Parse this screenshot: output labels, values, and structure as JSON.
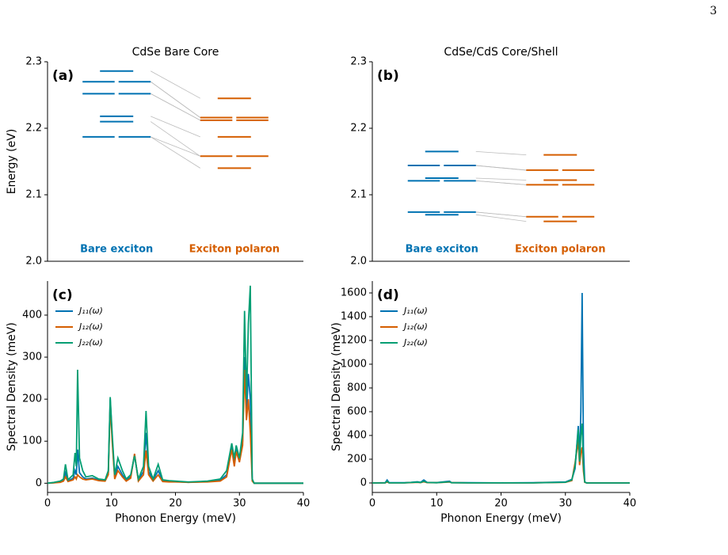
{
  "page_number": "3",
  "chart_data": [
    {
      "type": "levels",
      "title": "CdSe Bare Core",
      "panel_label": "(a)",
      "ylabel": "Energy (eV)",
      "ylim": [
        2.0,
        2.3
      ],
      "yticks": [
        {
          "value": 2.0,
          "label": "2.0"
        },
        2.1,
        2.2,
        2.3
      ],
      "series": [
        {
          "name": "Bare exciton",
          "color": "#0072b2",
          "values": [
            2.286,
            2.27,
            2.27,
            2.252,
            2.252,
            2.218,
            2.21,
            2.187,
            2.187
          ]
        },
        {
          "name": "Exciton polaron",
          "color": "#d55e00",
          "values": [
            2.245,
            2.216,
            2.216,
            2.212,
            2.212,
            2.187,
            2.158,
            2.158,
            2.14
          ]
        }
      ]
    },
    {
      "type": "levels",
      "title": "CdSe/CdS Core/Shell",
      "panel_label": "(b)",
      "ylim": [
        2.0,
        2.3
      ],
      "yticks": [
        {
          "value": 2.0,
          "label": "2.0"
        },
        2.1,
        2.2,
        2.3
      ],
      "series": [
        {
          "name": "Bare exciton",
          "color": "#0072b2",
          "values": [
            2.165,
            2.144,
            2.144,
            2.125,
            2.121,
            2.121,
            2.074,
            2.074,
            2.07
          ]
        },
        {
          "name": "Exciton polaron",
          "color": "#d55e00",
          "values": [
            2.16,
            2.137,
            2.137,
            2.122,
            2.115,
            2.115,
            2.067,
            2.067,
            2.06
          ]
        }
      ]
    },
    {
      "type": "line",
      "panel_label": "(c)",
      "xlabel": "Phonon Energy (meV)",
      "ylabel": "Spectral Density (meV)",
      "xlim": [
        0,
        40
      ],
      "xticks": [
        0,
        10,
        20,
        30,
        40
      ],
      "ylim": [
        -22,
        481
      ],
      "yticks": [
        0,
        100,
        200,
        300,
        400
      ],
      "legend": "upper left",
      "x": [
        0,
        1,
        2,
        2.5,
        2.8,
        3.2,
        4,
        4.3,
        4.5,
        4.7,
        5.0,
        5.5,
        6,
        7,
        8,
        9,
        9.5,
        9.8,
        10.1,
        10.5,
        11,
        11.7,
        12.3,
        13,
        13.6,
        14.2,
        15,
        15.4,
        15.8,
        16.5,
        17.3,
        18,
        19,
        20,
        22,
        25,
        27,
        28,
        28.8,
        29.2,
        29.5,
        30,
        30.5,
        30.8,
        31.1,
        31.4,
        31.7,
        32.0,
        32.3,
        33,
        35,
        40
      ],
      "series": [
        {
          "name": "J₁₁(ω)",
          "color": "#0072b2",
          "values": [
            0,
            1,
            3,
            7,
            25,
            5,
            12,
            30,
            20,
            80,
            25,
            15,
            10,
            12,
            8,
            6,
            25,
            200,
            110,
            15,
            40,
            20,
            7,
            15,
            68,
            7,
            28,
            120,
            28,
            7,
            30,
            6,
            4,
            4,
            2,
            4,
            7,
            20,
            85,
            50,
            80,
            55,
            100,
            300,
            170,
            260,
            200,
            8,
            0,
            0,
            0,
            0
          ]
        },
        {
          "name": "J₁₂(ω)",
          "color": "#d55e00",
          "values": [
            0,
            1,
            2,
            5,
            15,
            4,
            8,
            15,
            10,
            20,
            15,
            10,
            8,
            10,
            6,
            5,
            20,
            190,
            100,
            10,
            30,
            15,
            5,
            12,
            70,
            5,
            20,
            78,
            20,
            5,
            20,
            4,
            3,
            3,
            2,
            3,
            5,
            15,
            80,
            40,
            75,
            50,
            90,
            270,
            150,
            200,
            120,
            5,
            0,
            0,
            0,
            0
          ]
        },
        {
          "name": "J₂₂(ω)",
          "color": "#029e73",
          "values": [
            0,
            2,
            5,
            10,
            45,
            8,
            20,
            72,
            40,
            270,
            60,
            30,
            15,
            18,
            10,
            8,
            30,
            205,
            120,
            20,
            60,
            30,
            10,
            20,
            65,
            10,
            40,
            172,
            40,
            10,
            45,
            8,
            6,
            5,
            3,
            5,
            10,
            30,
            95,
            60,
            90,
            60,
            120,
            410,
            200,
            380,
            470,
            10,
            0,
            0,
            0,
            0
          ]
        }
      ]
    },
    {
      "type": "line",
      "panel_label": "(d)",
      "xlabel": "Phonon Energy (meV)",
      "ylabel": "Spectral Density (meV)",
      "xlim": [
        0,
        40
      ],
      "xticks": [
        0,
        10,
        20,
        30,
        40
      ],
      "ylim": [
        -80,
        1700
      ],
      "yticks": [
        0,
        200,
        400,
        600,
        800,
        1000,
        1200,
        1400,
        1600
      ],
      "legend": "upper left",
      "x": [
        0,
        2,
        2.3,
        2.6,
        5,
        6,
        7,
        7.5,
        8,
        8.5,
        10,
        12,
        12.3,
        15,
        20,
        25,
        30,
        31,
        31.5,
        32,
        32.2,
        32.4,
        32.6,
        32.8,
        33.0,
        33.3,
        34,
        40
      ],
      "series": [
        {
          "name": "J₁₁(ω)",
          "color": "#0072b2",
          "values": [
            0,
            2,
            25,
            2,
            2,
            5,
            10,
            5,
            25,
            5,
            3,
            15,
            3,
            2,
            1,
            2,
            8,
            30,
            120,
            480,
            200,
            600,
            1600,
            300,
            10,
            0,
            0,
            0
          ]
        },
        {
          "name": "J₁₂(ω)",
          "color": "#d55e00",
          "values": [
            0,
            1,
            8,
            1,
            1,
            3,
            5,
            3,
            10,
            3,
            2,
            8,
            2,
            1,
            1,
            1,
            5,
            20,
            170,
            350,
            150,
            250,
            300,
            100,
            5,
            0,
            0,
            0
          ]
        },
        {
          "name": "J₂₂(ω)",
          "color": "#029e73",
          "values": [
            0,
            1,
            15,
            1,
            1,
            4,
            7,
            4,
            15,
            4,
            2,
            10,
            2,
            1,
            1,
            1,
            6,
            25,
            140,
            450,
            180,
            400,
            500,
            150,
            8,
            0,
            0,
            0
          ]
        }
      ]
    }
  ]
}
